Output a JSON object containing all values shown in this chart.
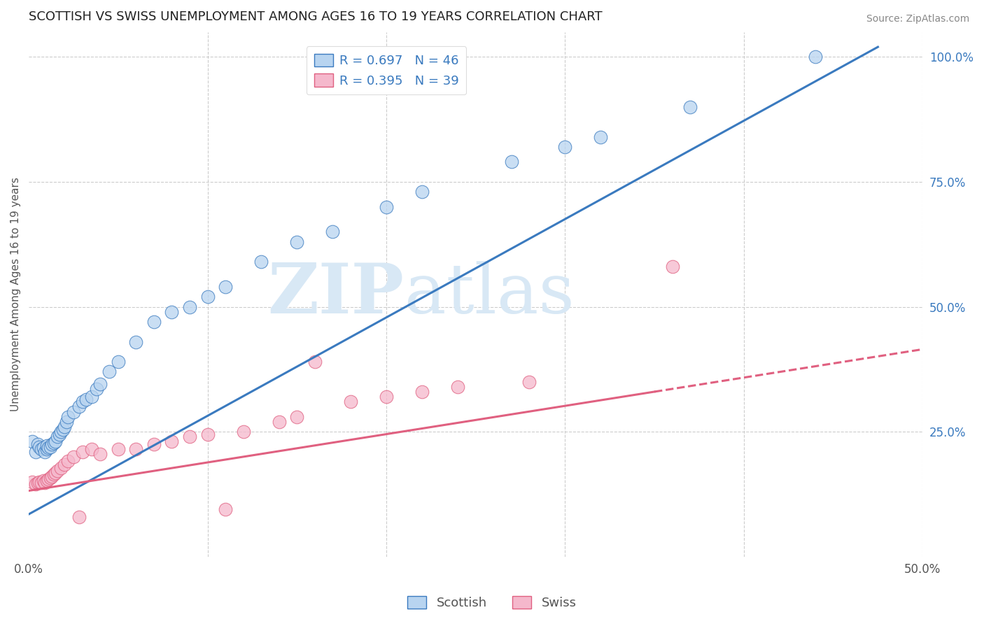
{
  "title": "SCOTTISH VS SWISS UNEMPLOYMENT AMONG AGES 16 TO 19 YEARS CORRELATION CHART",
  "source": "Source: ZipAtlas.com",
  "ylabel": "Unemployment Among Ages 16 to 19 years",
  "xlim": [
    0.0,
    0.5
  ],
  "ylim": [
    0.0,
    1.05
  ],
  "xticks": [
    0.0,
    0.1,
    0.2,
    0.3,
    0.4,
    0.5
  ],
  "xtick_labels": [
    "0.0%",
    "",
    "",
    "",
    "",
    "50.0%"
  ],
  "yticks_right": [
    0.25,
    0.5,
    0.75,
    1.0
  ],
  "ytick_labels_right": [
    "25.0%",
    "50.0%",
    "75.0%",
    "100.0%"
  ],
  "scottish_R": 0.697,
  "scottish_N": 46,
  "swiss_R": 0.395,
  "swiss_N": 39,
  "scottish_color": "#b8d4f0",
  "swiss_color": "#f5b8cc",
  "scottish_line_color": "#3a7abf",
  "swiss_line_color": "#e06080",
  "legend_color": "#3a7abf",
  "watermark_zip": "ZIP",
  "watermark_atlas": "atlas",
  "scottish_x": [
    0.002,
    0.004,
    0.005,
    0.006,
    0.007,
    0.008,
    0.009,
    0.01,
    0.01,
    0.011,
    0.012,
    0.013,
    0.014,
    0.015,
    0.016,
    0.017,
    0.018,
    0.019,
    0.02,
    0.021,
    0.022,
    0.025,
    0.028,
    0.03,
    0.032,
    0.035,
    0.038,
    0.04,
    0.045,
    0.05,
    0.06,
    0.07,
    0.08,
    0.09,
    0.1,
    0.11,
    0.13,
    0.15,
    0.17,
    0.2,
    0.22,
    0.27,
    0.3,
    0.32,
    0.37,
    0.44
  ],
  "scottish_y": [
    0.23,
    0.21,
    0.225,
    0.22,
    0.215,
    0.218,
    0.21,
    0.215,
    0.222,
    0.218,
    0.22,
    0.225,
    0.228,
    0.23,
    0.24,
    0.245,
    0.25,
    0.255,
    0.26,
    0.27,
    0.28,
    0.29,
    0.3,
    0.31,
    0.315,
    0.32,
    0.335,
    0.345,
    0.37,
    0.39,
    0.43,
    0.47,
    0.49,
    0.5,
    0.52,
    0.54,
    0.59,
    0.63,
    0.65,
    0.7,
    0.73,
    0.79,
    0.82,
    0.84,
    0.9,
    1.0
  ],
  "swiss_x": [
    0.002,
    0.004,
    0.005,
    0.006,
    0.007,
    0.008,
    0.009,
    0.01,
    0.011,
    0.012,
    0.013,
    0.014,
    0.015,
    0.016,
    0.018,
    0.02,
    0.022,
    0.025,
    0.028,
    0.03,
    0.035,
    0.04,
    0.05,
    0.06,
    0.07,
    0.08,
    0.09,
    0.1,
    0.11,
    0.12,
    0.14,
    0.15,
    0.16,
    0.18,
    0.2,
    0.22,
    0.24,
    0.28,
    0.36
  ],
  "swiss_y": [
    0.15,
    0.145,
    0.148,
    0.15,
    0.148,
    0.152,
    0.148,
    0.152,
    0.155,
    0.158,
    0.16,
    0.165,
    0.168,
    0.172,
    0.178,
    0.185,
    0.192,
    0.2,
    0.08,
    0.21,
    0.215,
    0.205,
    0.215,
    0.215,
    0.225,
    0.23,
    0.24,
    0.245,
    0.095,
    0.25,
    0.27,
    0.28,
    0.39,
    0.31,
    0.32,
    0.33,
    0.34,
    0.35,
    0.58
  ],
  "scot_line_x0": 0.0,
  "scot_line_y0": 0.085,
  "scot_line_x1": 0.475,
  "scot_line_y1": 1.02,
  "swiss_line_x0": 0.0,
  "swiss_line_y0": 0.132,
  "swiss_line_x1": 0.5,
  "swiss_line_y1": 0.415,
  "swiss_line_dashed_x0": 0.35,
  "swiss_line_dashed_x1": 0.5,
  "background_color": "#ffffff",
  "grid_color": "#cccccc"
}
